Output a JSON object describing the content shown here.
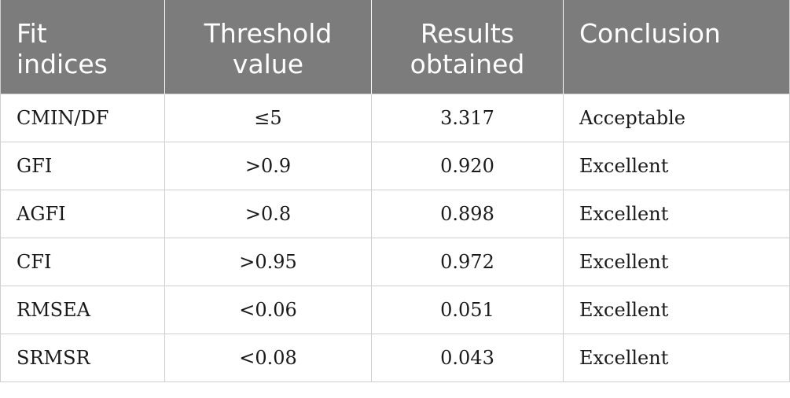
{
  "table": {
    "headers": [
      {
        "line1": "Fit",
        "line2": "indices"
      },
      {
        "line1": "Threshold",
        "line2": "value"
      },
      {
        "line1": "Results",
        "line2": "obtained"
      },
      {
        "line1": "Conclusion",
        "line2": ""
      }
    ],
    "rows": [
      {
        "index": "CMIN/DF",
        "threshold": "≤5",
        "result": "3.317",
        "conclusion": "Acceptable"
      },
      {
        "index": "GFI",
        "threshold": ">0.9",
        "result": "0.920",
        "conclusion": "Excellent"
      },
      {
        "index": "AGFI",
        "threshold": ">0.8",
        "result": "0.898",
        "conclusion": "Excellent"
      },
      {
        "index": "CFI",
        "threshold": ">0.95",
        "result": "0.972",
        "conclusion": "Excellent"
      },
      {
        "index": "RMSEA",
        "threshold": "<0.06",
        "result": "0.051",
        "conclusion": "Excellent"
      },
      {
        "index": "SRMSR",
        "threshold": "<0.08",
        "result": "0.043",
        "conclusion": "Excellent"
      }
    ]
  }
}
